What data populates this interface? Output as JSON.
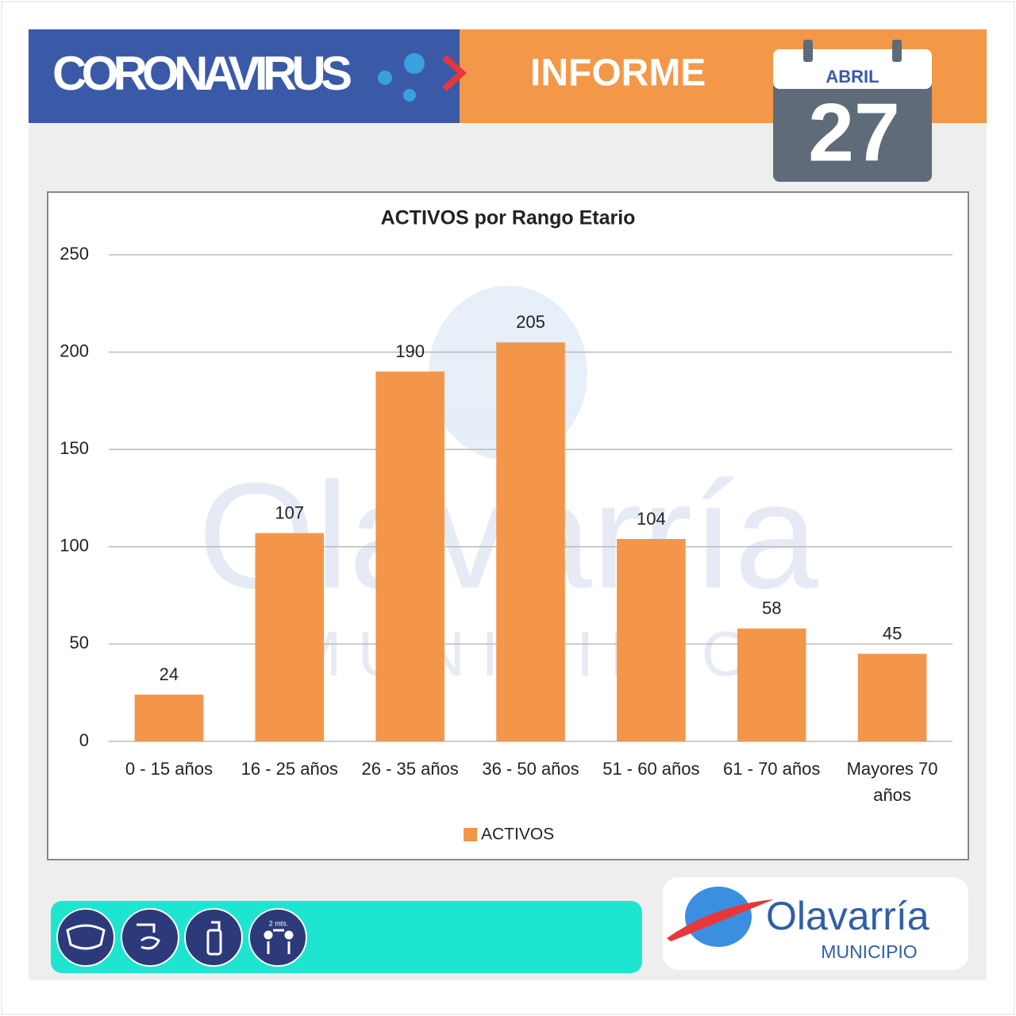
{
  "header": {
    "title": "CORONAVIRUS",
    "subtitle": "INFORME",
    "month": "ABRIL",
    "day": "27"
  },
  "chart_data": {
    "type": "bar",
    "title": "ACTIVOS por Rango Etario",
    "categories": [
      "0 - 15 años",
      "16 - 25 años",
      "26 - 35 años",
      "36 - 50 años",
      "51 - 60 años",
      "61 - 70 años",
      "Mayores 70 años"
    ],
    "series": [
      {
        "name": "ACTIVOS",
        "color": "#f4964a",
        "values": [
          24,
          107,
          190,
          205,
          104,
          58,
          45
        ]
      }
    ],
    "ylim": [
      0,
      250
    ],
    "yticks": [
      0,
      50,
      100,
      150,
      200,
      250
    ],
    "grid": true,
    "legend": "bottom"
  },
  "footer": {
    "distance": "2 mts.",
    "logo": "Olavarría",
    "logo_sub": "MUNICIPIO"
  }
}
